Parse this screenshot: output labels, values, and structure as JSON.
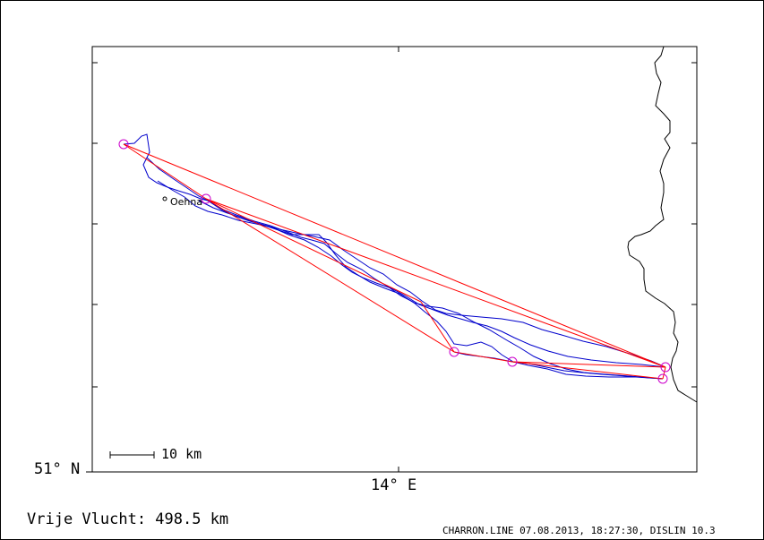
{
  "map": {
    "lat_label": "51° N",
    "lon_label": "14° E",
    "scale_label": "10 km",
    "town_label": "Oehna",
    "distance_label": "Vrije Vlucht:  498.5 km",
    "footer": "CHARRON.LINE 07.08.2013, 18:27:30, DISLIN 10.3"
  },
  "colors": {
    "track": "#0000cc",
    "route": "#ff0000",
    "turnpoint": "#cc00cc",
    "border": "#000000"
  },
  "icons": {
    "turnpoint": "circle-marker-icon",
    "town": "small-circle-icon"
  }
}
